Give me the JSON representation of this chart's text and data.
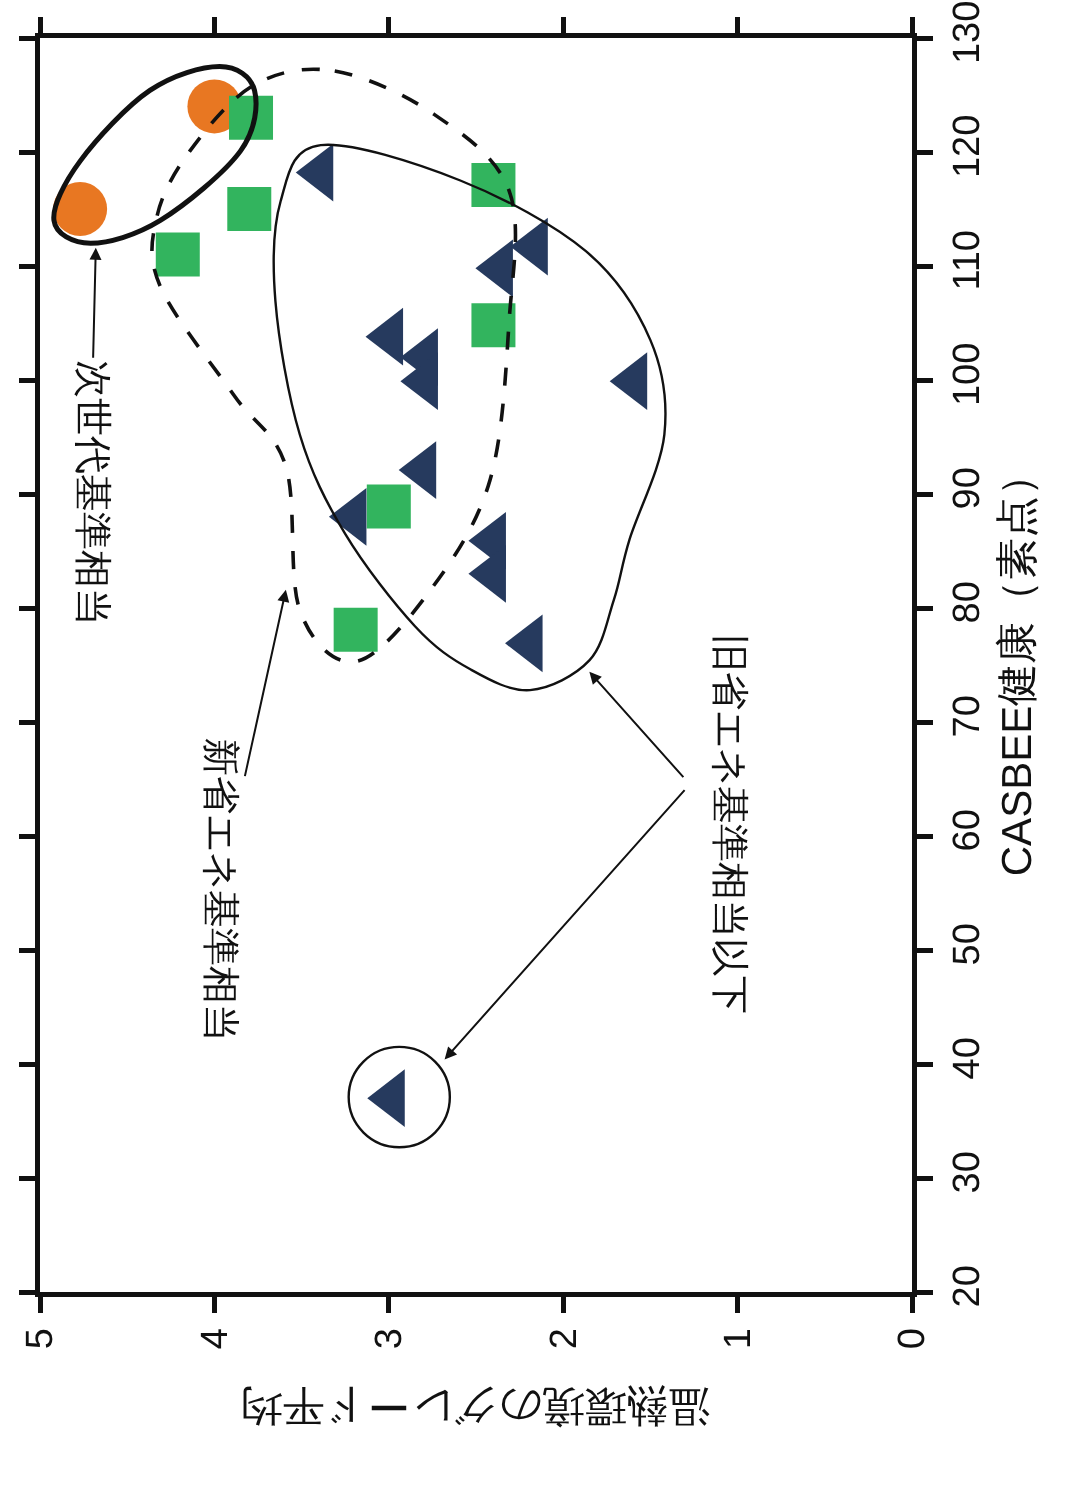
{
  "chart_data": {
    "type": "scatter",
    "xlabel": "温熱環境のグレード平均",
    "ylabel": "CASBEE健康（素点）",
    "xlim": [
      5,
      0
    ],
    "xticks": [
      5,
      4,
      3,
      2,
      1,
      0
    ],
    "ylim": [
      20,
      130
    ],
    "yticks": [
      20,
      30,
      40,
      50,
      60,
      70,
      80,
      90,
      100,
      110,
      120,
      130
    ],
    "grid": false,
    "series": [
      {
        "color": "#e87722",
        "marker": "circle",
        "x": [
          4.77,
          4.0
        ],
        "values": [
          115.0,
          124.0
        ]
      },
      {
        "color": "#32b45e",
        "marker": "square",
        "x": [
          3.79,
          3.8,
          4.21,
          2.4,
          2.4,
          3.0,
          3.19
        ],
        "values": [
          123.0,
          115.0,
          111.0,
          117.1,
          104.8,
          88.9,
          78.1
        ]
      },
      {
        "color": "#263a5e",
        "marker": "triangle",
        "x": [
          3.39,
          2.36,
          2.16,
          2.99,
          2.79,
          2.79,
          1.59,
          2.8,
          3.2,
          2.4,
          2.4,
          2.19,
          2.98
        ],
        "values": [
          118.2,
          109.8,
          111.7,
          103.8,
          102.0,
          99.9,
          99.9,
          92.1,
          88.0,
          85.9,
          83.0,
          76.9,
          37.0
        ]
      }
    ],
    "annotations": [
      "次世代基準相当",
      "新省エネ基準相当",
      "旧省エネ基準相当以下"
    ]
  }
}
